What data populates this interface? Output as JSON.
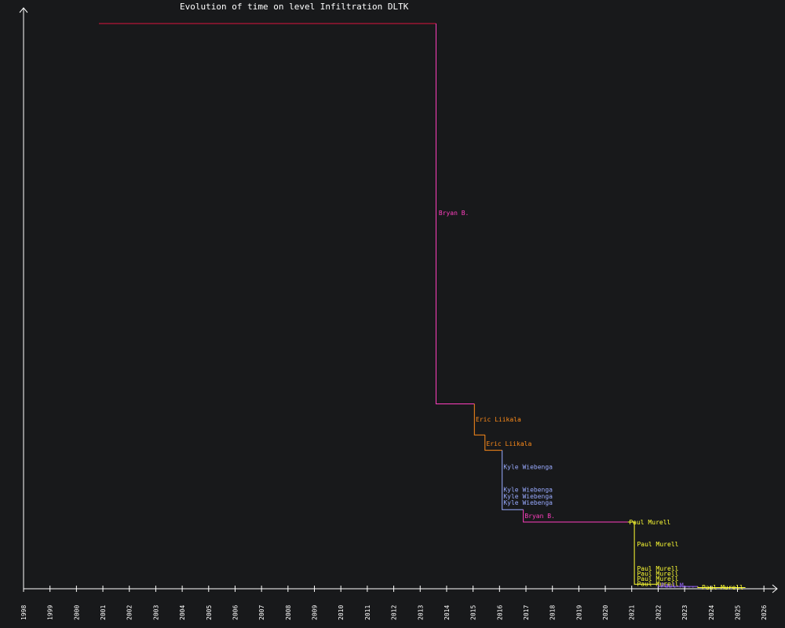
{
  "chart_data": {
    "type": "line",
    "title": "Evolution of time on level Infiltration DLTK",
    "xlabel": "",
    "ylabel": "",
    "x_ticks": [
      "1998",
      "1999",
      "2000",
      "2001",
      "2002",
      "2003",
      "2004",
      "2005",
      "2006",
      "2007",
      "2008",
      "2009",
      "2010",
      "2011",
      "2012",
      "2013",
      "2014",
      "2015",
      "2016",
      "2017",
      "2018",
      "2019",
      "2020",
      "2021",
      "2022",
      "2023",
      "2024",
      "2025",
      "2026"
    ],
    "xlim": [
      1998.0,
      2026.5
    ],
    "ylim": [
      0,
      1000
    ],
    "grid": false,
    "series": [
      {
        "name": "",
        "color": "#dc143c",
        "points": [
          [
            2000.85,
            1000
          ],
          [
            2013.6,
            1000
          ]
        ]
      },
      {
        "name": "Bryan B.",
        "color": "#ff3fbf",
        "points": [
          [
            2013.6,
            1000
          ],
          [
            2013.6,
            327
          ],
          [
            2015.05,
            327
          ]
        ],
        "label_at": [
          2013.7,
          665
        ]
      },
      {
        "name": "Eric Liikala",
        "color": "#ff8c1a",
        "points": [
          [
            2015.05,
            327
          ],
          [
            2015.05,
            272
          ],
          [
            2015.45,
            272
          ]
        ],
        "label_at": [
          2015.1,
          300
        ]
      },
      {
        "name": "Eric Liikala",
        "color": "#ff8c1a",
        "points": [
          [
            2015.45,
            272
          ],
          [
            2015.45,
            245
          ],
          [
            2016.1,
            245
          ]
        ],
        "label_at": [
          2015.5,
          257
        ]
      },
      {
        "name": "Kyle Wiebenga",
        "color": "#99aaff",
        "points": [
          [
            2016.1,
            245
          ],
          [
            2016.1,
            140
          ],
          [
            2016.9,
            140
          ]
        ],
        "label_at": [
          2016.15,
          216
        ]
      },
      {
        "name": "Bryan B.",
        "color": "#ff3fbf",
        "points": [
          [
            2016.9,
            140
          ],
          [
            2016.9,
            118
          ],
          [
            2020.85,
            118
          ]
        ],
        "label_at": [
          2016.95,
          129
        ]
      },
      {
        "name": "Paul Murell",
        "color": "#ffff33",
        "points": [
          [
            2020.85,
            118
          ],
          [
            2021.1,
            118
          ],
          [
            2021.1,
            8
          ],
          [
            2022.0,
            8
          ]
        ],
        "label_at": [
          2020.9,
          118
        ]
      },
      {
        "name": "",
        "color": "#9966ff",
        "points": [
          [
            2022.0,
            8
          ],
          [
            2022.0,
            4
          ],
          [
            2023.5,
            4
          ]
        ]
      },
      {
        "name": "Paul Murell",
        "color": "#ffff33",
        "points": [
          [
            2023.5,
            4
          ],
          [
            2023.5,
            2
          ],
          [
            2025.3,
            2
          ]
        ],
        "label_at": [
          2023.65,
          3
        ]
      }
    ],
    "annotations": [
      {
        "text": "Kyle Wiebenga",
        "color": "#99aaff",
        "x": 2016.15,
        "y": 176
      },
      {
        "text": "Kyle Wiebenga",
        "color": "#99aaff",
        "x": 2016.15,
        "y": 164
      },
      {
        "text": "Kyle Wiebenga",
        "color": "#99aaff",
        "x": 2016.15,
        "y": 153
      },
      {
        "text": "Paul Murell",
        "color": "#ffff33",
        "x": 2021.2,
        "y": 79
      },
      {
        "text": "Paul Murell",
        "color": "#ffff33",
        "x": 2021.2,
        "y": 36
      },
      {
        "text": "Paul Murell",
        "color": "#ffff33",
        "x": 2021.2,
        "y": 27
      },
      {
        "text": "Paul Murell",
        "color": "#ffff33",
        "x": 2021.2,
        "y": 18
      },
      {
        "text": "Paul Murell",
        "color": "#ffff33",
        "x": 2021.2,
        "y": 9
      },
      {
        "text": "Paul M...",
        "color": "#9966ff",
        "x": 2022.1,
        "y": 6
      }
    ],
    "axis_color": "#ffffff",
    "background": "#18191b"
  }
}
